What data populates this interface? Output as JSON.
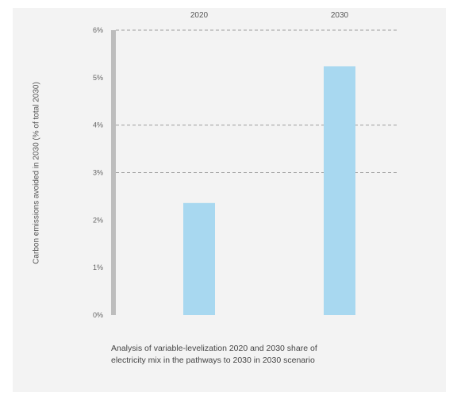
{
  "chart_data": {
    "type": "bar",
    "categories": [
      "2020",
      "2030"
    ],
    "values": [
      5.9,
      13.1
    ],
    "ylim": [
      0,
      15
    ],
    "yticks": [
      0,
      2.5,
      5,
      7.5,
      10,
      12.5,
      15
    ],
    "ytick_labels": [
      "0%",
      "1%",
      "2%",
      "3%",
      "4%",
      "5%",
      "6%"
    ],
    "ylabel": "Carbon emissions avoided in 2030 (% of total 2030)",
    "gridlines": [
      7.5,
      10,
      15
    ],
    "grid": "dashed",
    "bar_color": "#a8d8f0",
    "caption_lines": [
      "Analysis of variable-levelization 2020 and 2030 share of",
      "electricity mix in the pathways to 2030 in 2030 scenario"
    ]
  },
  "colors": {
    "background": "#f3f3f3",
    "axis": "#bdbdbd",
    "grid": "#9e9e9e",
    "bar": "#a8d8f0"
  }
}
